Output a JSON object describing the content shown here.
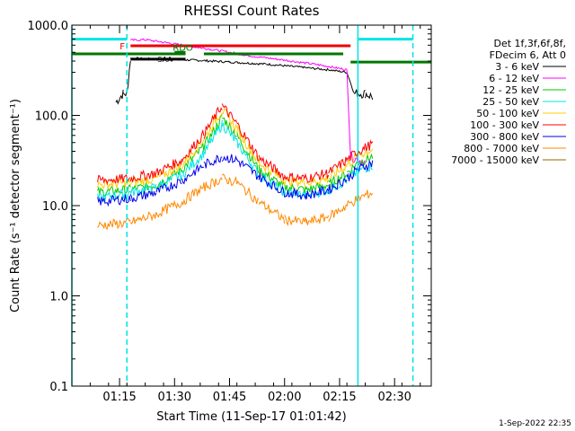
{
  "chart_data": {
    "type": "line",
    "title": "RHESSI Count Rates",
    "xlabel": "Start Time (11-Sep-17 01:01:42)",
    "ylabel": "Count Rate (s⁻¹ detector segment⁻¹)",
    "y_scale": "log",
    "xlim": [
      "01:02",
      "02:40"
    ],
    "ylim": [
      0.1,
      1000.0
    ],
    "x_ticks": [
      "01:15",
      "01:30",
      "01:45",
      "02:00",
      "02:15",
      "02:30"
    ],
    "y_ticks": [
      "0.1",
      "1.0",
      "10.0",
      "100.0",
      "1000.0"
    ],
    "grid": false,
    "legend_position": "right",
    "legend_header": [
      "Det 1f,3f,6f,8f,",
      "FDecim 6, Att 0"
    ],
    "series": [
      {
        "name": "3 - 6 keV",
        "color": "#000000",
        "points": [
          [
            "01:14",
            140
          ],
          [
            "01:16",
            175
          ],
          [
            "01:17",
            175
          ],
          [
            "01:18",
            430
          ],
          [
            "01:25",
            420
          ],
          [
            "01:35",
            410
          ],
          [
            "01:45",
            390
          ],
          [
            "01:55",
            370
          ],
          [
            "02:05",
            340
          ],
          [
            "02:12",
            320
          ],
          [
            "02:17",
            300
          ],
          [
            "02:19",
            175
          ],
          [
            "02:22",
            175
          ],
          [
            "02:24",
            160
          ]
        ]
      },
      {
        "name": "6 - 12 keV",
        "color": "#ff00ff",
        "points": [
          [
            "01:18",
            680
          ],
          [
            "01:22",
            690
          ],
          [
            "01:30",
            620
          ],
          [
            "01:40",
            540
          ],
          [
            "01:45",
            500
          ],
          [
            "01:50",
            460
          ],
          [
            "02:00",
            410
          ],
          [
            "02:10",
            360
          ],
          [
            "02:17",
            320
          ],
          [
            "02:18",
            35
          ],
          [
            "02:22",
            30
          ]
        ]
      },
      {
        "name": "12 - 25 keV",
        "color": "#00cc00",
        "points": [
          [
            "01:09",
            14
          ],
          [
            "01:18",
            15
          ],
          [
            "01:25",
            17
          ],
          [
            "01:32",
            25
          ],
          [
            "01:38",
            45
          ],
          [
            "01:43",
            95
          ],
          [
            "01:47",
            60
          ],
          [
            "01:53",
            25
          ],
          [
            "02:00",
            16
          ],
          [
            "02:06",
            15
          ],
          [
            "02:12",
            17
          ],
          [
            "02:17",
            23
          ],
          [
            "02:20",
            30
          ],
          [
            "02:24",
            35
          ]
        ]
      },
      {
        "name": "25 - 50 keV",
        "color": "#00e5e5",
        "points": [
          [
            "01:09",
            12
          ],
          [
            "01:18",
            14
          ],
          [
            "01:25",
            16
          ],
          [
            "01:32",
            22
          ],
          [
            "01:38",
            38
          ],
          [
            "01:43",
            80
          ],
          [
            "01:47",
            50
          ],
          [
            "01:53",
            22
          ],
          [
            "02:00",
            14
          ],
          [
            "02:06",
            13
          ],
          [
            "02:12",
            15
          ],
          [
            "02:17",
            19
          ],
          [
            "02:20",
            24
          ],
          [
            "02:24",
            28
          ]
        ]
      },
      {
        "name": "50 - 100 keV",
        "color": "#ffcc00",
        "points": [
          [
            "01:09",
            17
          ],
          [
            "01:18",
            18
          ],
          [
            "01:25",
            20
          ],
          [
            "01:32",
            28
          ],
          [
            "01:38",
            55
          ],
          [
            "01:43",
            115
          ],
          [
            "01:47",
            70
          ],
          [
            "01:53",
            30
          ],
          [
            "02:00",
            19
          ],
          [
            "02:06",
            18
          ],
          [
            "02:12",
            20
          ],
          [
            "02:17",
            28
          ],
          [
            "02:20",
            36
          ],
          [
            "02:24",
            42
          ]
        ]
      },
      {
        "name": "100 - 300 keV",
        "color": "#ff0000",
        "points": [
          [
            "01:09",
            19
          ],
          [
            "01:18",
            20
          ],
          [
            "01:25",
            23
          ],
          [
            "01:32",
            32
          ],
          [
            "01:38",
            62
          ],
          [
            "01:43",
            128
          ],
          [
            "01:47",
            80
          ],
          [
            "01:53",
            34
          ],
          [
            "02:00",
            21
          ],
          [
            "02:06",
            20
          ],
          [
            "02:12",
            23
          ],
          [
            "02:17",
            32
          ],
          [
            "02:20",
            40
          ],
          [
            "02:24",
            48
          ]
        ]
      },
      {
        "name": "300 - 800 keV",
        "color": "#0000ee",
        "points": [
          [
            "01:09",
            11
          ],
          [
            "01:18",
            12
          ],
          [
            "01:25",
            14
          ],
          [
            "01:32",
            19
          ],
          [
            "01:38",
            28
          ],
          [
            "01:43",
            35
          ],
          [
            "01:47",
            32
          ],
          [
            "01:53",
            21
          ],
          [
            "02:00",
            14
          ],
          [
            "02:06",
            13
          ],
          [
            "02:12",
            15
          ],
          [
            "02:17",
            20
          ],
          [
            "02:20",
            25
          ],
          [
            "02:24",
            30
          ]
        ]
      },
      {
        "name": "800 - 7000 keV",
        "color": "#ff8800",
        "points": [
          [
            "01:09",
            6
          ],
          [
            "01:18",
            6.5
          ],
          [
            "01:25",
            8
          ],
          [
            "01:32",
            11
          ],
          [
            "01:38",
            16
          ],
          [
            "01:43",
            20
          ],
          [
            "01:47",
            18
          ],
          [
            "01:53",
            11
          ],
          [
            "02:00",
            7
          ],
          [
            "02:06",
            6.5
          ],
          [
            "02:12",
            7.5
          ],
          [
            "02:17",
            10
          ],
          [
            "02:20",
            12
          ],
          [
            "02:24",
            14
          ]
        ]
      },
      {
        "name": "7000 - 15000 keV",
        "color": "#996600",
        "points": []
      }
    ],
    "flag_bars": [
      {
        "label": "F",
        "color": "#ee0000",
        "x0": "01:18",
        "x1": "02:18",
        "y": 590
      },
      {
        "label": "",
        "color": "#00e5e5",
        "x0": "01:02",
        "x1": "01:17",
        "y": 700
      },
      {
        "label": "",
        "color": "#00e5e5",
        "x0": "02:20",
        "x1": "02:35",
        "y": 700
      },
      {
        "label": "",
        "color": "#007700",
        "x0": "01:02",
        "x1": "01:33",
        "y": 480
      },
      {
        "label": "",
        "color": "#007700",
        "x0": "01:38",
        "x1": "02:16",
        "y": 480
      },
      {
        "label": "",
        "color": "#007700",
        "x0": "02:18",
        "x1": "02:40",
        "y": 390
      },
      {
        "label": "SAA",
        "color": "#000000",
        "x0": "01:18",
        "x1": "01:33",
        "y": 420
      },
      {
        "label": "RDO",
        "color": "#007700",
        "x0": "01:30",
        "x1": "01:33",
        "y": 500
      }
    ],
    "vertical_markers": [
      {
        "x": "01:02",
        "color": "#00e5e5",
        "style": "solid"
      },
      {
        "x": "01:17",
        "color": "#00e5e5",
        "style": "dashed"
      },
      {
        "x": "02:20",
        "color": "#00e5e5",
        "style": "solid"
      },
      {
        "x": "02:35",
        "color": "#00e5e5",
        "style": "dashed"
      }
    ]
  },
  "footer": {
    "timestamp": "1-Sep-2022 22:35"
  }
}
